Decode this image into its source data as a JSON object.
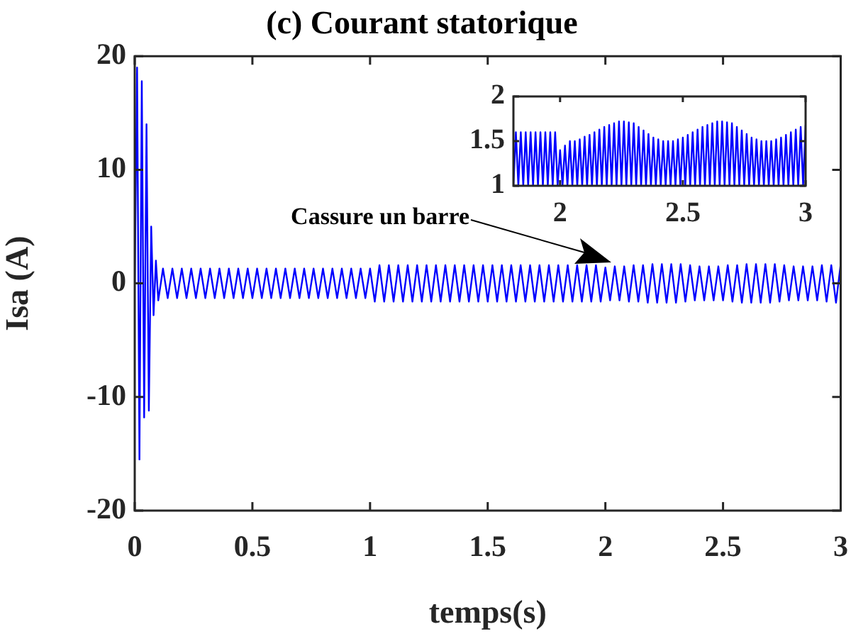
{
  "chart_data": [
    {
      "type": "line",
      "title": "(c) Courant statorique",
      "xlabel": "temps(s)",
      "ylabel": "Isa (A)",
      "x": [
        0,
        0.01,
        0.02,
        0.03,
        0.04,
        0.05,
        0.06,
        0.07,
        0.08,
        0.09,
        0.1,
        0.12,
        0.14,
        0.16,
        0.18,
        0.2,
        0.22,
        0.24,
        0.26,
        0.28,
        0.3,
        0.32,
        0.34,
        0.36,
        0.38,
        0.4,
        0.42,
        0.44,
        0.46,
        0.48,
        0.5,
        0.52,
        0.54,
        0.56,
        0.58,
        0.6,
        0.62,
        0.64,
        0.66,
        0.68,
        0.7,
        0.72,
        0.74,
        0.76,
        0.78,
        0.8,
        0.82,
        0.84,
        0.86,
        0.88,
        0.9,
        0.92,
        0.94,
        0.96,
        0.98,
        1.0,
        1.02,
        1.04,
        1.06,
        1.08,
        1.1,
        1.12,
        1.14,
        1.16,
        1.18,
        1.2,
        1.22,
        1.24,
        1.26,
        1.28,
        1.3,
        1.32,
        1.34,
        1.36,
        1.38,
        1.4,
        1.42,
        1.44,
        1.46,
        1.48,
        1.5,
        1.52,
        1.54,
        1.56,
        1.58,
        1.6,
        1.62,
        1.64,
        1.66,
        1.68,
        1.7,
        1.72,
        1.74,
        1.76,
        1.78,
        1.8,
        1.82,
        1.84,
        1.86,
        1.88,
        1.9,
        1.92,
        1.94,
        1.96,
        1.98,
        2.0,
        2.02,
        2.04,
        2.06,
        2.08,
        2.1,
        2.12,
        2.14,
        2.16,
        2.18,
        2.2,
        2.22,
        2.24,
        2.26,
        2.28,
        2.3,
        2.32,
        2.34,
        2.36,
        2.38,
        2.4,
        2.42,
        2.44,
        2.46,
        2.48,
        2.5,
        2.52,
        2.54,
        2.56,
        2.58,
        2.6,
        2.62,
        2.64,
        2.66,
        2.68,
        2.7,
        2.72,
        2.74,
        2.76,
        2.78,
        2.8,
        2.82,
        2.84,
        2.86,
        2.88,
        2.9,
        2.92,
        2.94,
        2.96,
        2.98,
        3.0
      ],
      "series": [
        {
          "color": "#0000ff",
          "values": [
            0,
            19,
            -15.5,
            17.8,
            -11.8,
            14,
            -11.2,
            5,
            -2.8,
            2,
            -1.5,
            1.3,
            -1.3,
            1.3,
            -1.3,
            1.3,
            -1.3,
            1.3,
            -1.3,
            1.3,
            -1.3,
            1.3,
            -1.3,
            1.3,
            -1.3,
            1.3,
            -1.3,
            1.3,
            -1.3,
            1.3,
            -1.3,
            1.3,
            -1.3,
            1.3,
            -1.3,
            1.3,
            -1.3,
            1.3,
            -1.3,
            1.3,
            -1.3,
            1.3,
            -1.3,
            1.3,
            -1.3,
            1.3,
            -1.3,
            1.3,
            -1.3,
            1.3,
            -1.3,
            1.3,
            -1.3,
            1.3,
            -1.3,
            1.3,
            -1.6,
            1.6,
            -1.6,
            1.6,
            -1.6,
            1.6,
            -1.6,
            1.6,
            -1.6,
            1.6,
            -1.6,
            1.6,
            -1.6,
            1.6,
            -1.6,
            1.6,
            -1.6,
            1.6,
            -1.6,
            1.6,
            -1.6,
            1.6,
            -1.6,
            1.6,
            -1.6,
            1.6,
            -1.6,
            1.6,
            -1.6,
            1.6,
            -1.6,
            1.6,
            -1.6,
            1.6,
            -1.6,
            1.6,
            -1.6,
            1.6,
            -1.6,
            1.6,
            -1.6,
            1.6,
            -1.6,
            1.6,
            -1.6,
            1.6,
            -1.6,
            1.6,
            -1.6,
            1.4,
            -1.5,
            1.5,
            -1.5,
            1.5,
            -1.6,
            1.6,
            -1.6,
            1.6,
            -1.7,
            1.7,
            -1.7,
            1.7,
            -1.7,
            1.7,
            -1.7,
            1.7,
            -1.6,
            1.6,
            -1.5,
            1.5,
            -1.5,
            1.5,
            -1.5,
            1.5,
            -1.5,
            1.6,
            -1.6,
            1.6,
            -1.7,
            1.7,
            -1.7,
            1.7,
            -1.7,
            1.7,
            -1.7,
            1.7,
            -1.6,
            1.6,
            -1.5,
            1.5,
            -1.5,
            1.5,
            -1.5,
            1.5,
            -1.5,
            1.6,
            -1.6,
            1.6,
            -1.7,
            1.7
          ]
        }
      ],
      "xlim": [
        0,
        3
      ],
      "xticks": [
        0,
        0.5,
        1,
        1.5,
        2,
        2.5,
        3
      ],
      "ylim": [
        -20,
        20
      ],
      "yticks": [
        -20,
        -10,
        0,
        10,
        20
      ],
      "grid": false,
      "legend": false,
      "annotations": [
        "Cassure un barre"
      ]
    },
    {
      "type": "line",
      "x": [
        1.81,
        1.82,
        1.83,
        1.84,
        1.85,
        1.86,
        1.87,
        1.88,
        1.89,
        1.9,
        1.91,
        1.92,
        1.93,
        1.94,
        1.95,
        1.96,
        1.97,
        1.98,
        1.99,
        2.0,
        2.01,
        2.02,
        2.03,
        2.04,
        2.05,
        2.06,
        2.07,
        2.08,
        2.09,
        2.1,
        2.11,
        2.12,
        2.13,
        2.14,
        2.15,
        2.16,
        2.17,
        2.18,
        2.19,
        2.2,
        2.21,
        2.22,
        2.23,
        2.24,
        2.25,
        2.26,
        2.27,
        2.28,
        2.29,
        2.3,
        2.31,
        2.32,
        2.33,
        2.34,
        2.35,
        2.36,
        2.37,
        2.38,
        2.39,
        2.4,
        2.41,
        2.42,
        2.43,
        2.44,
        2.45,
        2.46,
        2.47,
        2.48,
        2.49,
        2.5,
        2.51,
        2.52,
        2.53,
        2.54,
        2.55,
        2.56,
        2.57,
        2.58,
        2.59,
        2.6,
        2.61,
        2.62,
        2.63,
        2.64,
        2.65,
        2.66,
        2.67,
        2.68,
        2.69,
        2.7,
        2.71,
        2.72,
        2.73,
        2.74,
        2.75,
        2.76,
        2.77,
        2.78,
        2.79,
        2.8,
        2.81,
        2.82,
        2.83,
        2.84,
        2.85,
        2.86,
        2.87,
        2.88,
        2.89,
        2.9,
        2.91,
        2.92,
        2.93,
        2.94,
        2.95,
        2.96,
        2.97,
        2.98,
        2.99,
        3.0
      ],
      "series": [
        {
          "color": "#0000ff",
          "values": [
            1,
            1.6,
            1,
            1.6,
            1,
            1.6,
            1,
            1.6,
            1,
            1.6,
            1,
            1.6,
            1,
            1.6,
            1,
            1.6,
            1,
            1.6,
            1,
            1.4,
            1,
            1.45,
            1,
            1.5,
            1,
            1.5,
            1,
            1.52,
            1,
            1.55,
            1,
            1.57,
            1,
            1.6,
            1,
            1.63,
            1,
            1.66,
            1,
            1.68,
            1,
            1.7,
            1,
            1.72,
            1,
            1.72,
            1,
            1.71,
            1,
            1.7,
            1,
            1.66,
            1,
            1.62,
            1,
            1.58,
            1,
            1.54,
            1,
            1.52,
            1,
            1.5,
            1,
            1.5,
            1,
            1.5,
            1,
            1.52,
            1,
            1.54,
            1,
            1.57,
            1,
            1.6,
            1,
            1.63,
            1,
            1.66,
            1,
            1.68,
            1,
            1.7,
            1,
            1.72,
            1,
            1.72,
            1,
            1.71,
            1,
            1.7,
            1,
            1.66,
            1,
            1.62,
            1,
            1.58,
            1,
            1.54,
            1,
            1.52,
            1,
            1.5,
            1,
            1.5,
            1,
            1.5,
            1,
            1.52,
            1,
            1.54,
            1,
            1.57,
            1,
            1.6,
            1,
            1.63,
            1,
            1.66,
            1,
            1.68
          ]
        }
      ],
      "xlim": [
        1.81,
        3
      ],
      "xticks": [
        2,
        2.5,
        3
      ],
      "ylim": [
        1,
        2
      ],
      "yticks": [
        1,
        1.5,
        2
      ],
      "grid": false,
      "legend": false
    }
  ]
}
